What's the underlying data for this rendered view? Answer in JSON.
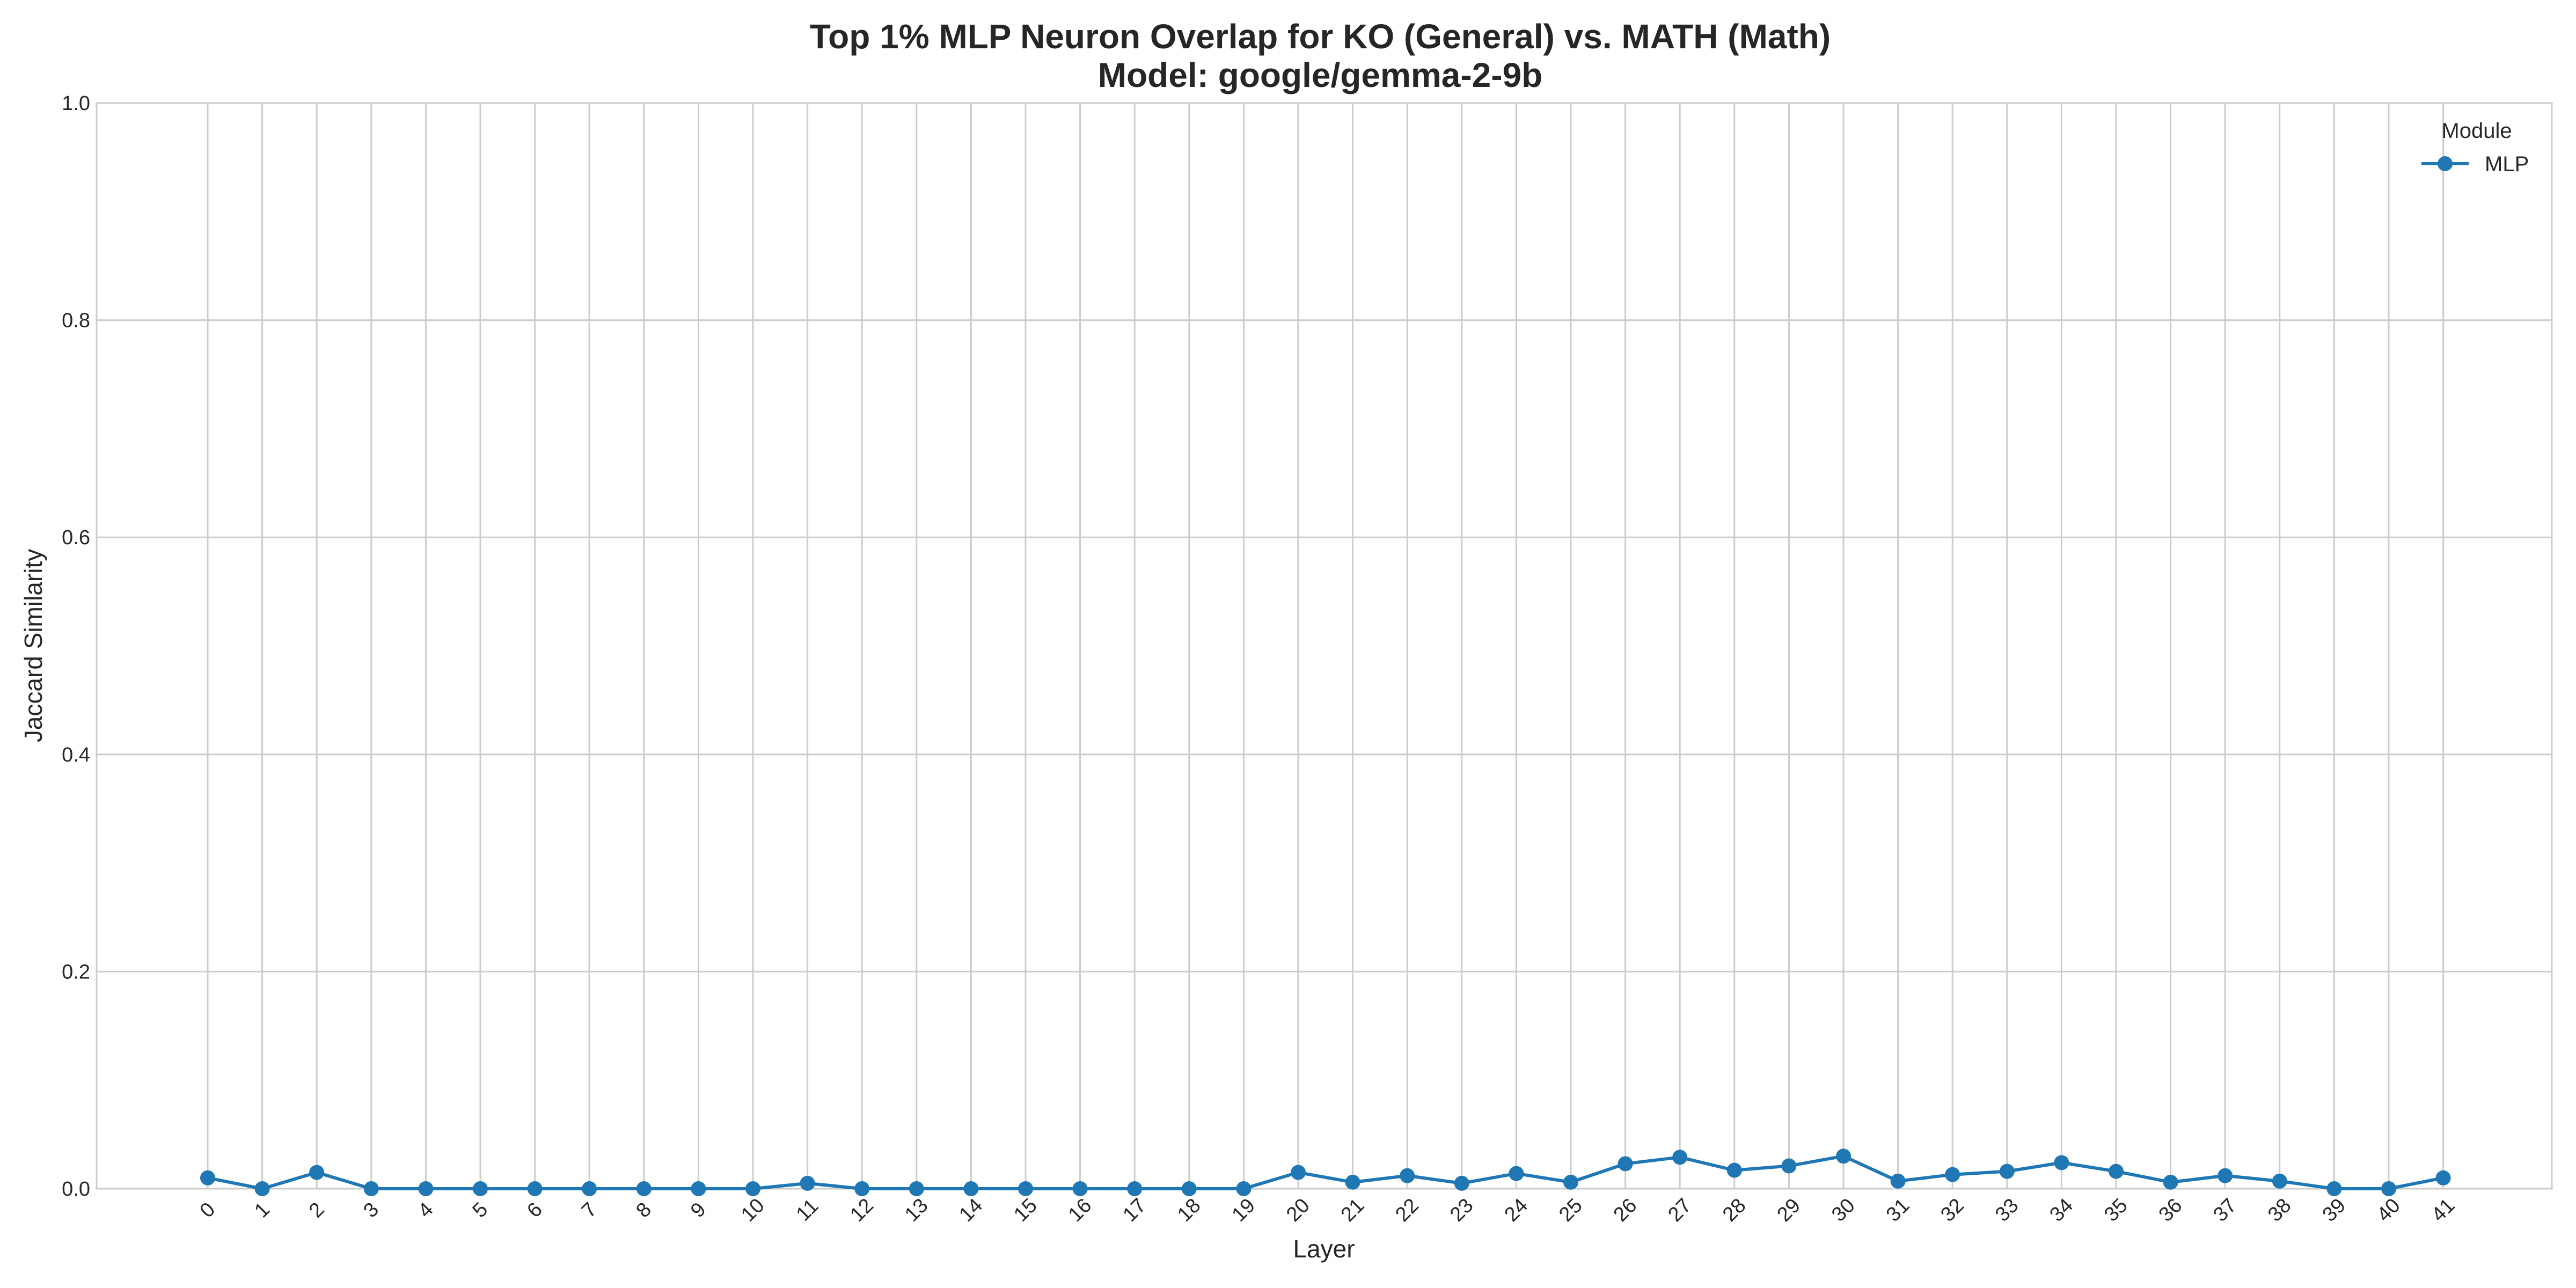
{
  "chart_data": {
    "type": "line",
    "title": "Top 1% MLP Neuron Overlap for KO (General) vs. MATH (Math)",
    "subtitle": "Model: google/gemma-2-9b",
    "xlabel": "Layer",
    "ylabel": "Jaccard Similarity",
    "x": [
      0,
      1,
      2,
      3,
      4,
      5,
      6,
      7,
      8,
      9,
      10,
      11,
      12,
      13,
      14,
      15,
      16,
      17,
      18,
      19,
      20,
      21,
      22,
      23,
      24,
      25,
      26,
      27,
      28,
      29,
      30,
      31,
      32,
      33,
      34,
      35,
      36,
      37,
      38,
      39,
      40,
      41
    ],
    "ylim": [
      0,
      1
    ],
    "yticks": [
      "0.0",
      "0.2",
      "0.4",
      "0.6",
      "0.8",
      "1.0"
    ],
    "grid": true,
    "legend": {
      "title": "Module",
      "placement": "top-right"
    },
    "series": [
      {
        "name": "MLP",
        "color": "#1f77b4",
        "marker": "circle",
        "values": [
          0.01,
          0.0,
          0.015,
          0.0,
          0.0,
          0.0,
          0.0,
          0.0,
          0.0,
          0.0,
          0.0,
          0.005,
          0.0,
          0.0,
          0.0,
          0.0,
          0.0,
          0.0,
          0.0,
          0.0,
          0.015,
          0.006,
          0.012,
          0.005,
          0.014,
          0.006,
          0.023,
          0.029,
          0.017,
          0.021,
          0.03,
          0.007,
          0.013,
          0.016,
          0.024,
          0.016,
          0.006,
          0.012,
          0.007,
          0.0,
          0.0,
          0.01
        ]
      }
    ]
  }
}
